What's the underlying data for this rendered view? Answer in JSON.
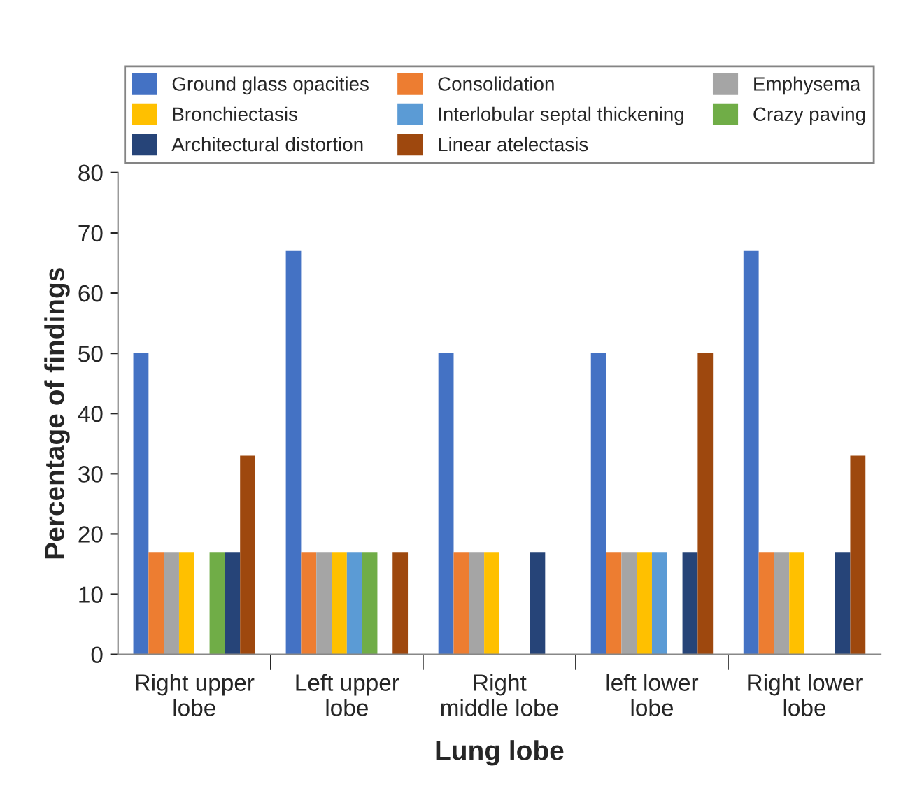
{
  "chart_data": {
    "type": "bar",
    "xlabel": "Lung lobe",
    "ylabel": "Percentage of findings",
    "categories": [
      "Right upper lobe",
      "Left upper lobe",
      "Right middle lobe",
      "left lower lobe",
      "Right lower lobe"
    ],
    "series": [
      {
        "name": "Ground glass opacities",
        "color": "#4472c4",
        "values": [
          50,
          67,
          50,
          50,
          67
        ]
      },
      {
        "name": "Consolidation",
        "color": "#ed7d31",
        "values": [
          17,
          17,
          17,
          17,
          17
        ]
      },
      {
        "name": "Emphysema",
        "color": "#a5a5a5",
        "values": [
          17,
          17,
          17,
          17,
          17
        ]
      },
      {
        "name": "Bronchiectasis",
        "color": "#ffc000",
        "values": [
          17,
          17,
          17,
          17,
          17
        ]
      },
      {
        "name": "Interlobular septal thickening",
        "color": "#5b9bd5",
        "values": [
          0,
          17,
          0,
          17,
          0
        ]
      },
      {
        "name": "Crazy paving",
        "color": "#70ad47",
        "values": [
          17,
          17,
          0,
          0,
          0
        ]
      },
      {
        "name": "Architectural distortion",
        "color": "#264478",
        "values": [
          17,
          0,
          17,
          17,
          17
        ]
      },
      {
        "name": "Linear atelectasis",
        "color": "#9e480e",
        "values": [
          33,
          17,
          0,
          50,
          33
        ]
      }
    ],
    "ylim": [
      0,
      80
    ],
    "yticks": [
      0,
      10,
      20,
      30,
      40,
      50,
      60,
      70,
      80
    ],
    "grid": false,
    "legend": "top"
  }
}
